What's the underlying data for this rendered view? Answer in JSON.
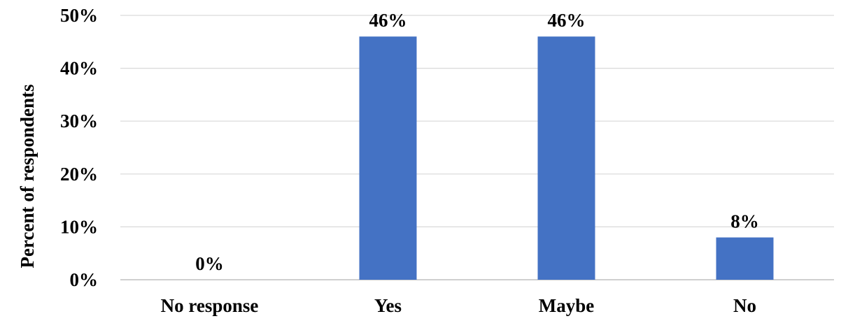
{
  "chart_data": {
    "type": "bar",
    "categories": [
      "No response",
      "Yes",
      "Maybe",
      "No"
    ],
    "values": [
      0,
      46,
      46,
      8
    ],
    "data_labels": [
      "0%",
      "46%",
      "46%",
      "8%"
    ],
    "ylabel": "Percent of respondents",
    "xlabel": "",
    "ylim": [
      0,
      50
    ],
    "yticks": [
      {
        "value": 0,
        "label": "0%"
      },
      {
        "value": 10,
        "label": "10%"
      },
      {
        "value": 20,
        "label": "20%"
      },
      {
        "value": 30,
        "label": "30%"
      },
      {
        "value": 40,
        "label": "40%"
      },
      {
        "value": 50,
        "label": "50%"
      }
    ],
    "grid": true,
    "legend": "none",
    "colors": {
      "bar": "#4472C4",
      "grid": "#D9D9D9",
      "axis": "#BFBFBF",
      "text": "#000000"
    }
  }
}
